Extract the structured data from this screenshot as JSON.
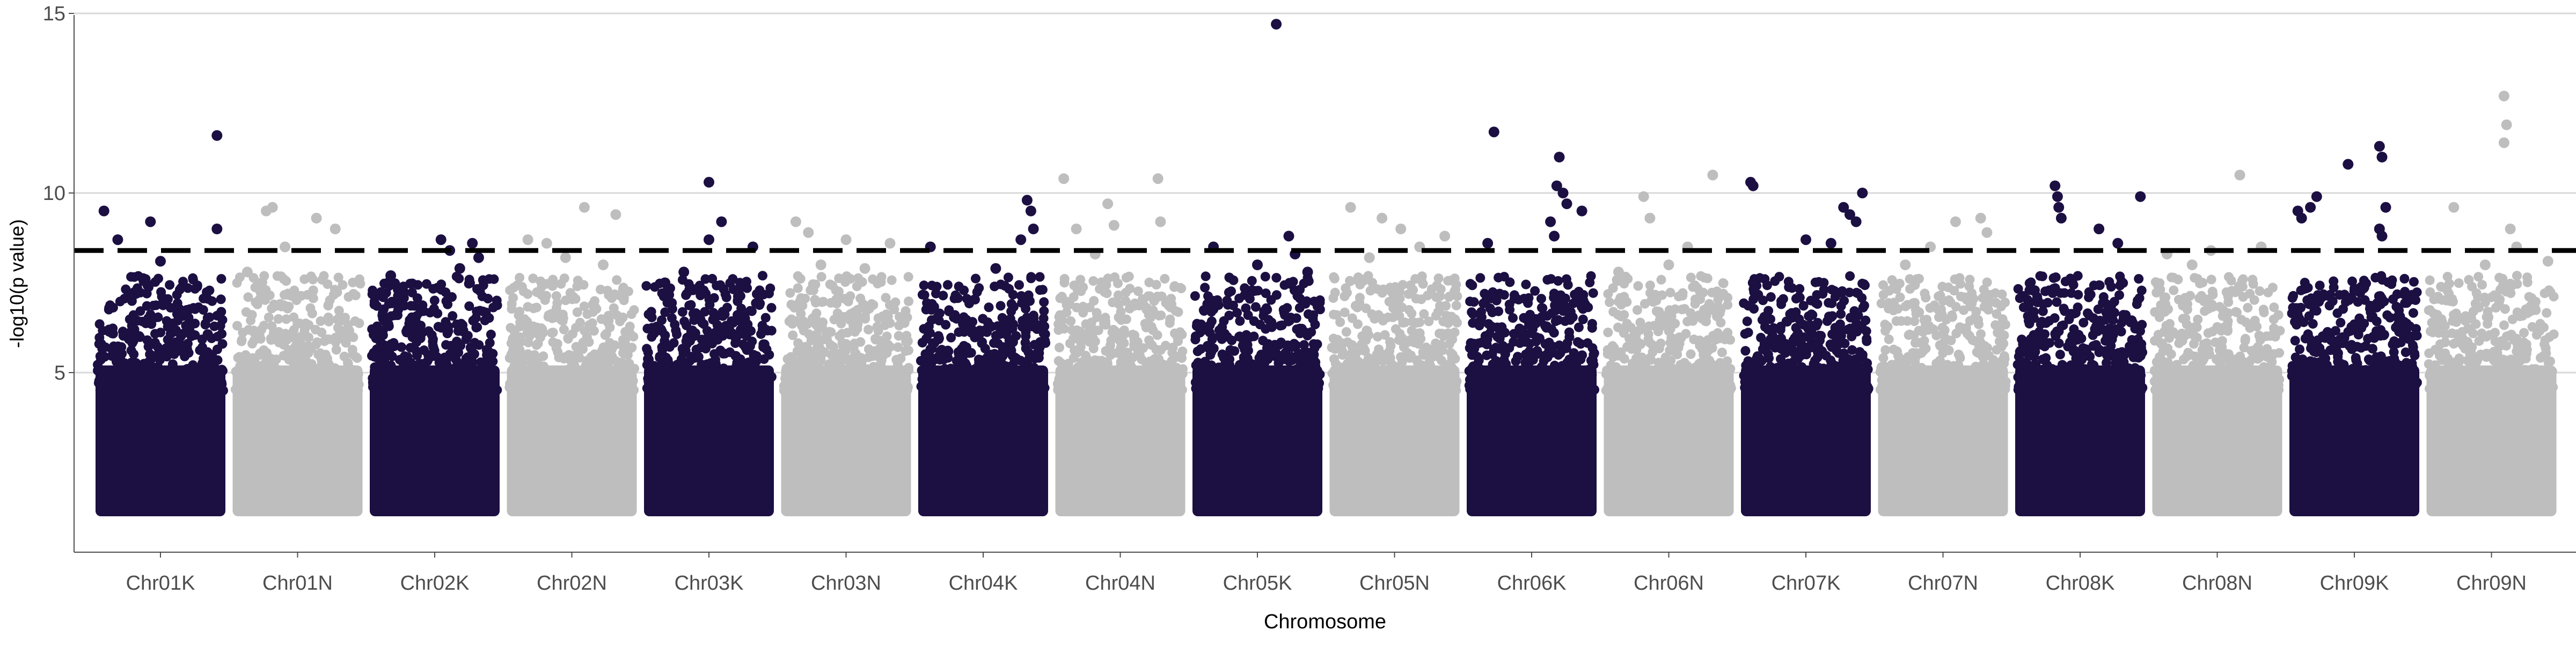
{
  "chart_data": {
    "type": "scatter",
    "title": "",
    "xlabel": "Chromosome",
    "ylabel": "-log10(p value)",
    "ylim": [
      0,
      15.5
    ],
    "yticks": [
      5,
      10,
      15
    ],
    "grid": "horizontal major lines at 5, 10 and 15",
    "threshold": 8.4,
    "colors": {
      "K": "#1c0f42",
      "N": "#bebebe",
      "threshold": "#000000",
      "grid": "#d9d9d9",
      "axis": "#4d4d4d"
    },
    "categories": [
      "Chr01K",
      "Chr01N",
      "Chr02K",
      "Chr02N",
      "Chr03K",
      "Chr03N",
      "Chr04K",
      "Chr04N",
      "Chr05K",
      "Chr05N",
      "Chr06K",
      "Chr06N",
      "Chr07K",
      "Chr07N",
      "Chr08K",
      "Chr08N",
      "Chr09K",
      "Chr09N"
    ],
    "series": [
      {
        "category": "Chr01K",
        "top": [
          [
            0.05,
            9.5
          ],
          [
            0.16,
            8.7
          ],
          [
            0.42,
            9.2
          ],
          [
            0.95,
            11.6
          ],
          [
            0.5,
            8.1
          ],
          [
            0.95,
            9.0
          ],
          [
            0.3,
            7.2
          ]
        ]
      },
      {
        "category": "Chr01N",
        "top": [
          [
            0.25,
            9.5
          ],
          [
            0.3,
            9.6
          ],
          [
            0.65,
            9.3
          ],
          [
            0.8,
            9.0
          ],
          [
            0.4,
            8.5
          ],
          [
            0.1,
            7.8
          ]
        ]
      },
      {
        "category": "Chr02K",
        "top": [
          [
            0.55,
            8.7
          ],
          [
            0.62,
            8.4
          ],
          [
            0.8,
            8.6
          ],
          [
            0.85,
            8.2
          ],
          [
            0.15,
            7.7
          ],
          [
            0.7,
            7.9
          ]
        ]
      },
      {
        "category": "Chr02N",
        "top": [
          [
            0.15,
            8.7
          ],
          [
            0.3,
            8.6
          ],
          [
            0.6,
            9.6
          ],
          [
            0.85,
            9.4
          ],
          [
            0.45,
            8.2
          ],
          [
            0.75,
            8.0
          ]
        ]
      },
      {
        "category": "Chr03K",
        "top": [
          [
            0.5,
            10.3
          ],
          [
            0.6,
            9.2
          ],
          [
            0.5,
            8.7
          ],
          [
            0.85,
            8.5
          ],
          [
            0.3,
            7.8
          ],
          [
            0.15,
            7.5
          ]
        ]
      },
      {
        "category": "Chr03N",
        "top": [
          [
            0.1,
            9.2
          ],
          [
            0.2,
            8.9
          ],
          [
            0.5,
            8.7
          ],
          [
            0.85,
            8.6
          ],
          [
            0.3,
            8.0
          ],
          [
            0.65,
            7.9
          ]
        ]
      },
      {
        "category": "Chr04K",
        "top": [
          [
            0.08,
            8.5
          ],
          [
            0.85,
            9.8
          ],
          [
            0.88,
            9.5
          ],
          [
            0.8,
            8.7
          ],
          [
            0.9,
            9.0
          ],
          [
            0.6,
            7.9
          ]
        ]
      },
      {
        "category": "Chr04N",
        "top": [
          [
            0.05,
            10.4
          ],
          [
            0.15,
            9.0
          ],
          [
            0.4,
            9.7
          ],
          [
            0.45,
            9.1
          ],
          [
            0.8,
            10.4
          ],
          [
            0.82,
            9.2
          ],
          [
            0.3,
            8.3
          ]
        ]
      },
      {
        "category": "Chr05K",
        "top": [
          [
            0.65,
            14.7
          ],
          [
            0.75,
            8.8
          ],
          [
            0.8,
            8.3
          ],
          [
            0.15,
            8.5
          ],
          [
            0.5,
            8.0
          ],
          [
            0.9,
            7.8
          ]
        ]
      },
      {
        "category": "Chr05N",
        "top": [
          [
            0.15,
            9.6
          ],
          [
            0.4,
            9.3
          ],
          [
            0.55,
            9.0
          ],
          [
            0.9,
            8.8
          ],
          [
            0.7,
            8.5
          ],
          [
            0.3,
            8.2
          ]
        ]
      },
      {
        "category": "Chr06K",
        "top": [
          [
            0.2,
            11.7
          ],
          [
            0.15,
            8.6
          ],
          [
            0.72,
            11.0
          ],
          [
            0.7,
            10.2
          ],
          [
            0.75,
            10.0
          ],
          [
            0.78,
            9.7
          ],
          [
            0.9,
            9.5
          ],
          [
            0.65,
            9.2
          ],
          [
            0.68,
            8.8
          ]
        ]
      },
      {
        "category": "Chr06N",
        "top": [
          [
            0.3,
            9.9
          ],
          [
            0.35,
            9.3
          ],
          [
            0.85,
            10.5
          ],
          [
            0.65,
            8.5
          ],
          [
            0.5,
            8.0
          ],
          [
            0.1,
            7.8
          ]
        ]
      },
      {
        "category": "Chr07K",
        "top": [
          [
            0.06,
            10.3
          ],
          [
            0.08,
            10.2
          ],
          [
            0.8,
            9.6
          ],
          [
            0.85,
            9.4
          ],
          [
            0.95,
            10.0
          ],
          [
            0.9,
            9.2
          ],
          [
            0.5,
            8.7
          ],
          [
            0.7,
            8.6
          ]
        ]
      },
      {
        "category": "Chr07N",
        "top": [
          [
            0.6,
            9.2
          ],
          [
            0.8,
            9.3
          ],
          [
            0.85,
            8.9
          ],
          [
            0.4,
            8.5
          ],
          [
            0.2,
            8.0
          ]
        ]
      },
      {
        "category": "Chr08K",
        "top": [
          [
            0.3,
            10.2
          ],
          [
            0.32,
            9.9
          ],
          [
            0.33,
            9.6
          ],
          [
            0.35,
            9.3
          ],
          [
            0.65,
            9.0
          ],
          [
            0.98,
            9.9
          ],
          [
            0.8,
            8.6
          ]
        ]
      },
      {
        "category": "Chr08N",
        "top": [
          [
            0.1,
            8.3
          ],
          [
            0.45,
            8.4
          ],
          [
            0.68,
            10.5
          ],
          [
            0.85,
            8.5
          ],
          [
            0.3,
            8.0
          ]
        ]
      },
      {
        "category": "Chr09K",
        "top": [
          [
            0.05,
            9.5
          ],
          [
            0.08,
            9.3
          ],
          [
            0.15,
            9.6
          ],
          [
            0.2,
            9.9
          ],
          [
            0.45,
            10.8
          ],
          [
            0.7,
            11.3
          ],
          [
            0.72,
            11.0
          ],
          [
            0.75,
            9.6
          ],
          [
            0.7,
            9.0
          ],
          [
            0.72,
            8.8
          ]
        ]
      },
      {
        "category": "Chr09N",
        "top": [
          [
            0.6,
            12.7
          ],
          [
            0.62,
            11.9
          ],
          [
            0.6,
            11.4
          ],
          [
            0.65,
            9.0
          ],
          [
            0.7,
            8.5
          ],
          [
            0.2,
            9.6
          ],
          [
            0.45,
            8.0
          ],
          [
            0.95,
            8.1
          ]
        ]
      }
    ]
  }
}
